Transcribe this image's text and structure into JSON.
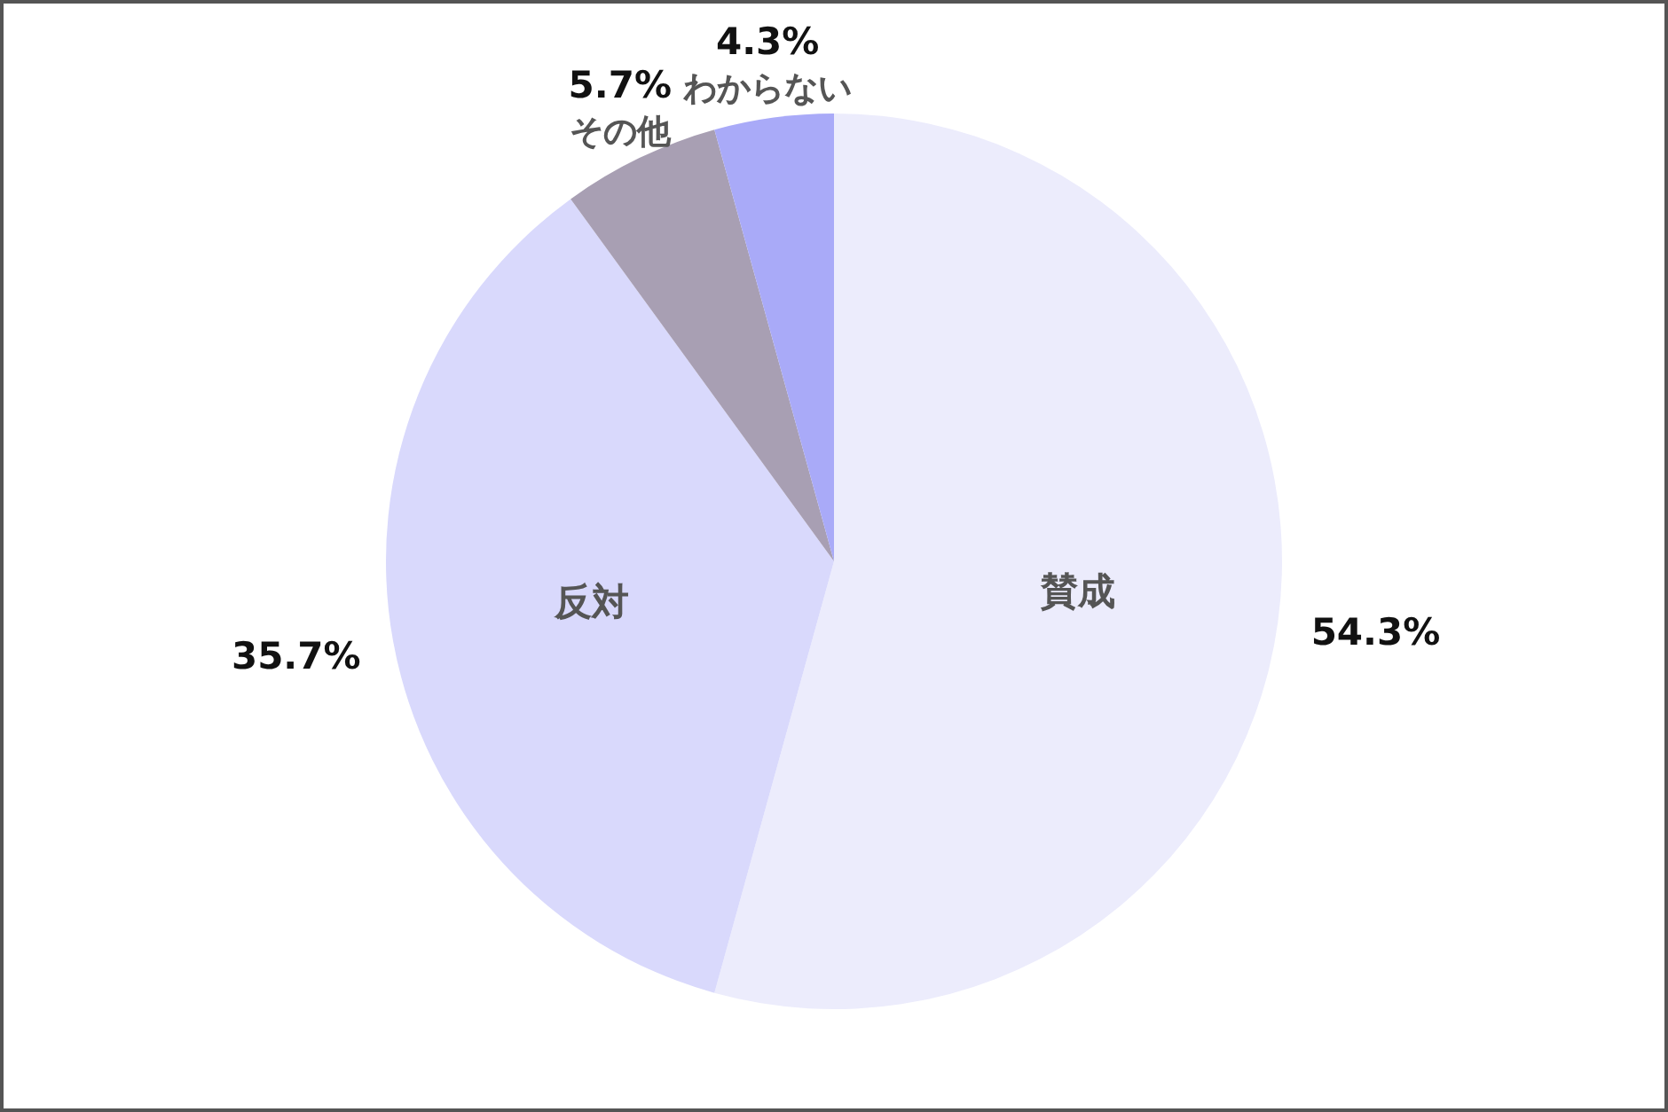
{
  "chart_data": {
    "type": "pie",
    "categories": [
      "賛成",
      "反対",
      "その他",
      "わからない"
    ],
    "values": [
      54.3,
      35.7,
      5.7,
      4.3
    ],
    "value_labels": [
      "54.3%",
      "35.7%",
      "5.7%",
      "4.3%"
    ],
    "colors": [
      "#ececfc",
      "#d9d9fc",
      "#a89fb3",
      "#a9aaf8"
    ],
    "legend": false
  }
}
